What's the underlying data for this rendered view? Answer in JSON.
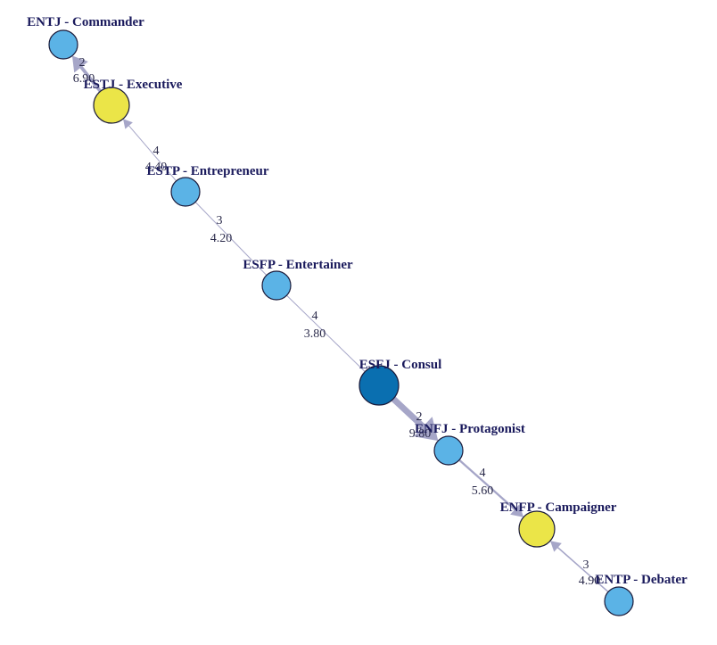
{
  "colors": {
    "light_blue": "#5bb3e6",
    "dark_blue": "#0a6fb0",
    "yellow": "#ebe548",
    "edge": "#a6a6c8"
  },
  "nodes": [
    {
      "id": "entj",
      "label": "ENTJ - Commander",
      "color": "light_blue",
      "size": 1
    },
    {
      "id": "estj",
      "label": "ESTJ - Executive",
      "color": "yellow",
      "size": 2
    },
    {
      "id": "estp",
      "label": "ESTP - Entrepreneur",
      "color": "light_blue",
      "size": 1
    },
    {
      "id": "esfp",
      "label": "ESFP - Entertainer",
      "color": "light_blue",
      "size": 1
    },
    {
      "id": "esfj",
      "label": "ESFJ - Consul",
      "color": "dark_blue",
      "size": 3
    },
    {
      "id": "enfj",
      "label": "ENFJ - Protagonist",
      "color": "light_blue",
      "size": 1
    },
    {
      "id": "enfp",
      "label": "ENFP - Campaigner",
      "color": "yellow",
      "size": 2
    },
    {
      "id": "entp",
      "label": "ENTP - Debater",
      "color": "light_blue",
      "size": 1
    }
  ],
  "edges": [
    {
      "from": "estj",
      "to": "entj",
      "count": "2",
      "value": "6.90",
      "weight": 6.9,
      "arrow": true
    },
    {
      "from": "estp",
      "to": "estj",
      "count": "4",
      "value": "4.40",
      "weight": 4.4,
      "arrow": true
    },
    {
      "from": "estp",
      "to": "esfp",
      "count": "3",
      "value": "4.20",
      "weight": 4.2,
      "arrow": false
    },
    {
      "from": "esfp",
      "to": "esfj",
      "count": "4",
      "value": "3.80",
      "weight": 3.8,
      "arrow": false
    },
    {
      "from": "esfj",
      "to": "enfj",
      "count": "2",
      "value": "9.80",
      "weight": 9.8,
      "arrow": true
    },
    {
      "from": "enfj",
      "to": "enfp",
      "count": "4",
      "value": "5.60",
      "weight": 5.6,
      "arrow": true
    },
    {
      "from": "entp",
      "to": "enfp",
      "count": "3",
      "value": "4.90",
      "weight": 4.9,
      "arrow": true
    }
  ]
}
